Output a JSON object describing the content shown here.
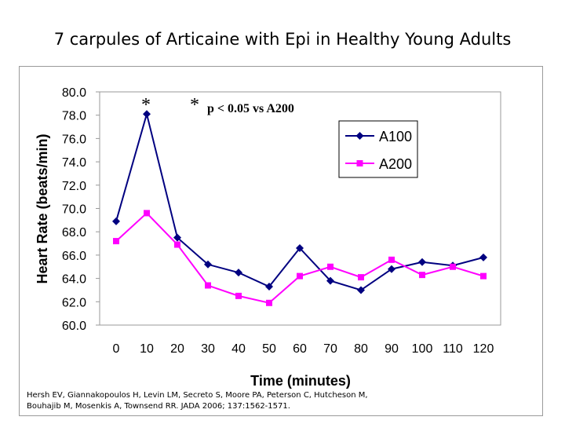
{
  "slide": {
    "title": "7 carpules of Articaine with Epi in Healthy Young Adults",
    "citation_line1": "Hersh EV, Giannakopoulos H, Levin LM, Secreto S, Moore PA, Peterson C, Hutcheson M,",
    "citation_line2": "Bouhajib M, Mosenkis A, Townsend RR. JADA 2006; 137:1562-1571."
  },
  "chart_data": {
    "type": "line",
    "title": "",
    "xlabel": "Time (minutes)",
    "ylabel": "Heart Rate (beats/min)",
    "categories": [
      "0",
      "10",
      "20",
      "30",
      "40",
      "50",
      "60",
      "70",
      "80",
      "90",
      "100",
      "110",
      "120"
    ],
    "ylim": [
      60,
      80
    ],
    "yticks": [
      "60.0",
      "62.0",
      "64.0",
      "66.0",
      "68.0",
      "70.0",
      "72.0",
      "74.0",
      "76.0",
      "78.0",
      "80.0"
    ],
    "grid": false,
    "legend_position": "top-right",
    "series": [
      {
        "name": "A100",
        "color": "#000080",
        "marker": "diamond",
        "values": [
          68.9,
          78.1,
          67.5,
          65.2,
          64.5,
          63.3,
          66.6,
          63.8,
          63.0,
          64.8,
          65.4,
          65.1,
          65.8
        ]
      },
      {
        "name": "A200",
        "color": "#ff00ff",
        "marker": "square",
        "values": [
          67.2,
          69.6,
          66.9,
          63.4,
          62.5,
          61.9,
          64.2,
          65.0,
          64.1,
          65.6,
          64.3,
          65.0,
          64.2
        ]
      }
    ],
    "annotations": {
      "star_marker": "*",
      "significance_star": "*",
      "significance_text": "p < 0.05 vs A200"
    }
  }
}
